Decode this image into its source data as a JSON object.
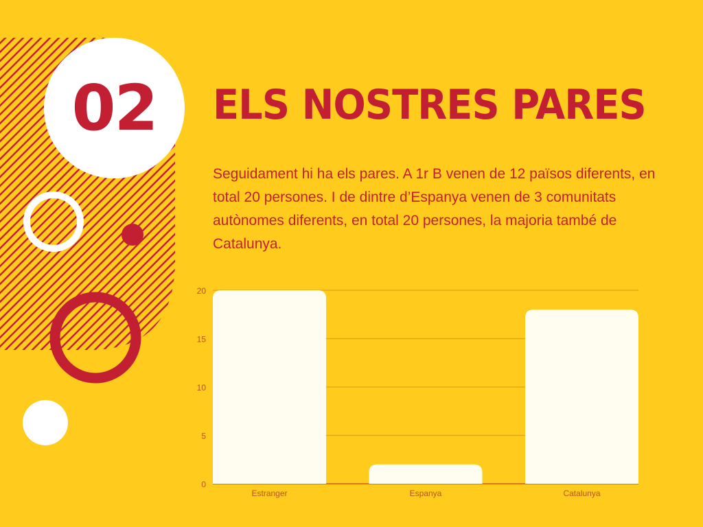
{
  "slide": {
    "number": "02",
    "title": "ELS NOSTRES PARES",
    "body": "Seguidament hi ha els pares. A 1r B venen de 12 països diferents, en total 20 persones. I de dintre d’Espanya venen de 3 comunitats autònomes diferents, en total 20 persones, la majoria també de Catalunya."
  },
  "colors": {
    "background": "#ffcb1d",
    "accent": "#c21f32",
    "bar": "#fffdf0",
    "white": "#ffffff"
  },
  "chart_data": {
    "type": "bar",
    "categories": [
      "Estranger",
      "Espanya",
      "Catalunya"
    ],
    "values": [
      20,
      2,
      18
    ],
    "ylim": [
      0,
      20
    ],
    "yticks": [
      "0",
      "5",
      "10",
      "15",
      "20"
    ],
    "grid": true,
    "title": "",
    "xlabel": "",
    "ylabel": ""
  }
}
